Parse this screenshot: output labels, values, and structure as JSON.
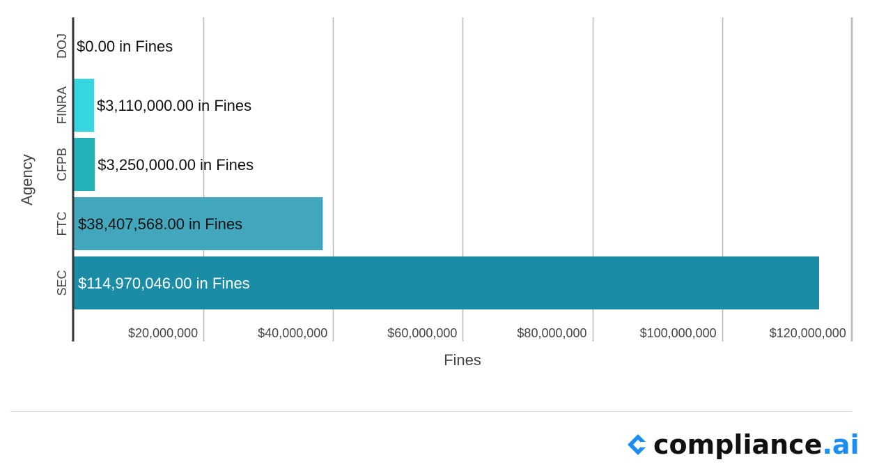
{
  "chart_data": {
    "type": "bar",
    "orientation": "horizontal",
    "categories": [
      "DOJ",
      "FINRA",
      "CFPB",
      "FTC",
      "SEC"
    ],
    "values": [
      0,
      3110000,
      3250000,
      38407568,
      114970046
    ],
    "data_labels": [
      "$0.00 in Fines",
      "$3,110,000.00 in Fines",
      "$3,250,000.00 in Fines",
      "$38,407,568.00 in Fines",
      "$114,970,046.00 in Fines"
    ],
    "bar_colors": [
      "#37d5e0",
      "#37d5e0",
      "#22b2b8",
      "#42a7bd",
      "#1a8ca6"
    ],
    "xlabel": "Fines",
    "ylabel": "Agency",
    "xlim": [
      0,
      120000000
    ],
    "x_ticks": [
      20000000,
      40000000,
      60000000,
      80000000,
      100000000,
      120000000
    ],
    "x_tick_labels": [
      "$20,000,000",
      "$40,000,000",
      "$60,000,000",
      "$80,000,000",
      "$100,000,000",
      "$120,000,000"
    ],
    "grid": true
  },
  "branding": {
    "name": "compliance",
    "suffix": ".ai",
    "accent_color": "#1b8ef2",
    "icon": "compliance-logo-icon"
  }
}
